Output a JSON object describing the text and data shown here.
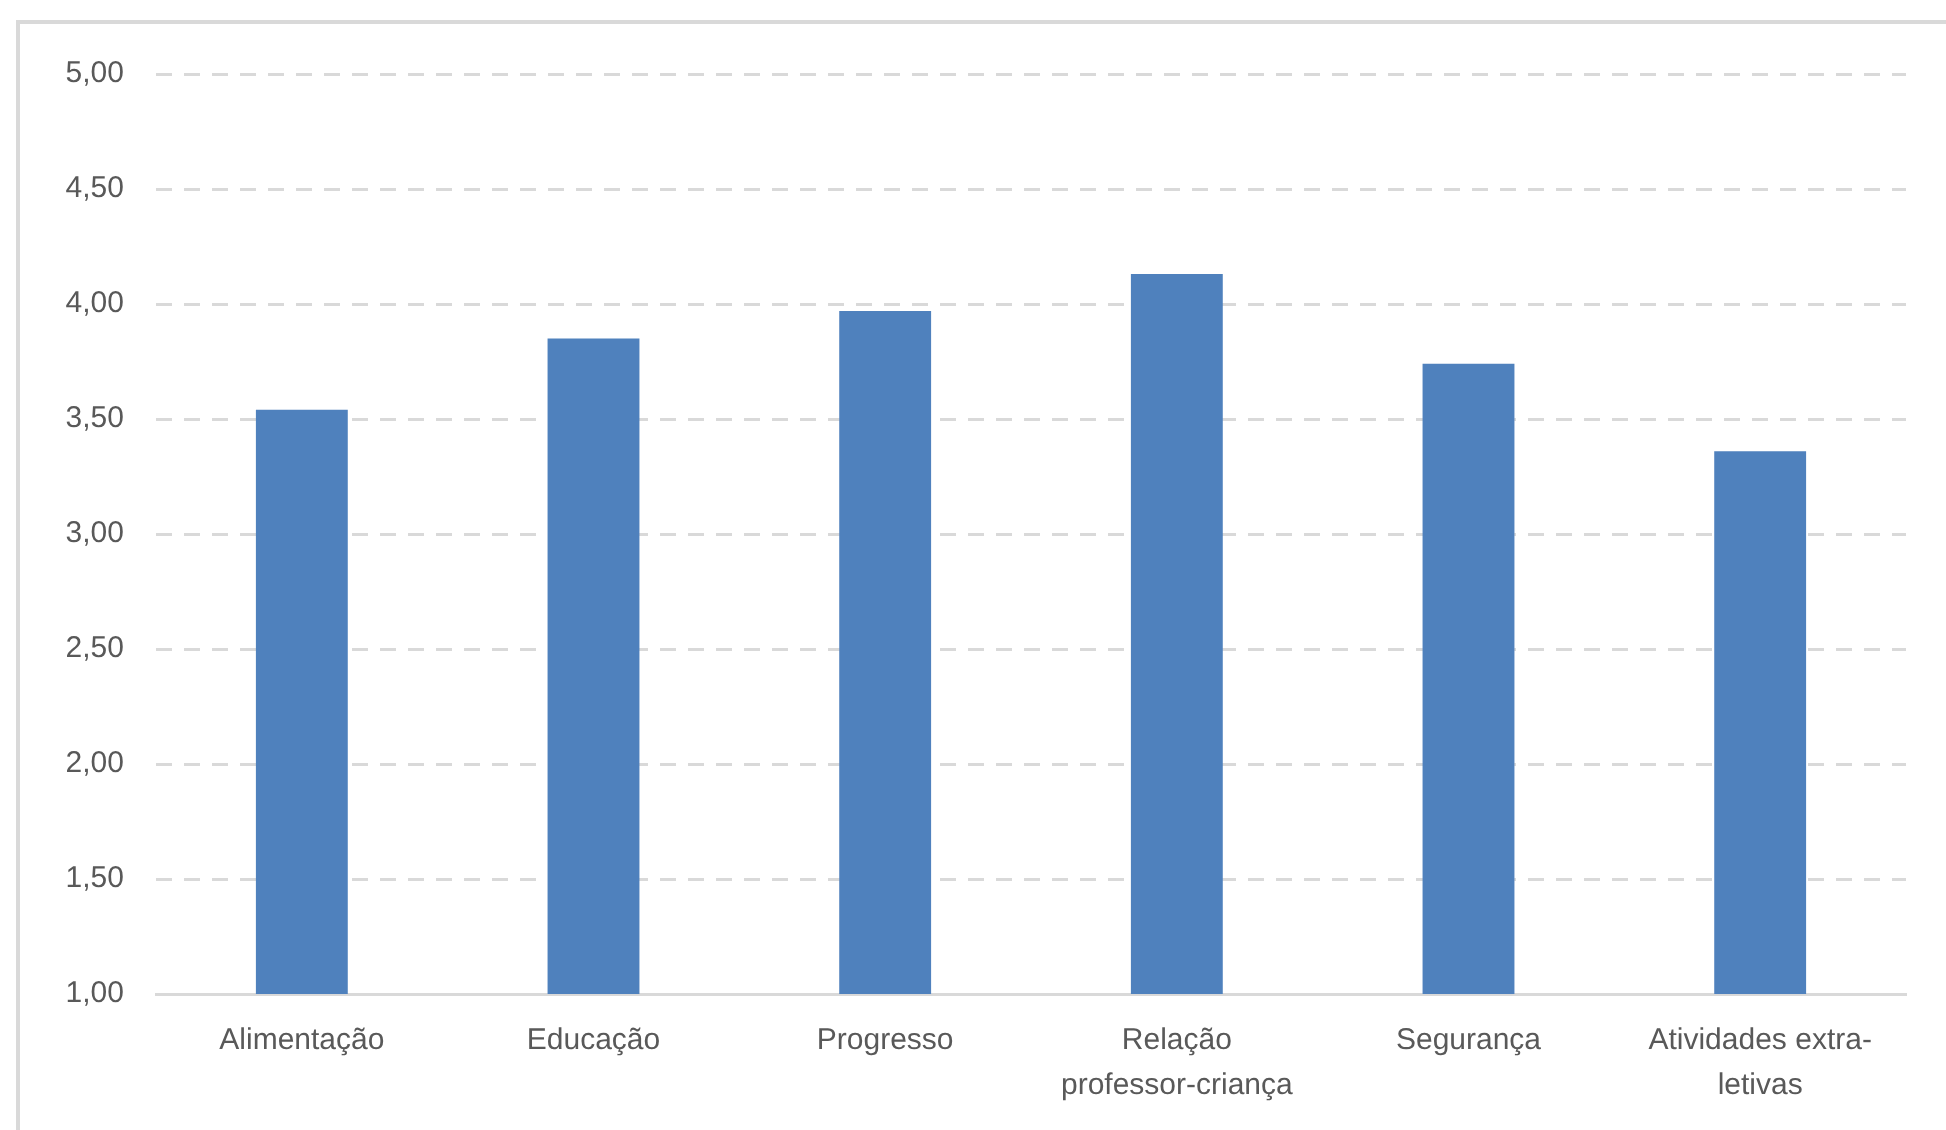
{
  "chart_data": {
    "type": "bar",
    "categories": [
      "Alimentação",
      "Educação",
      "Progresso",
      "Relação professor-criança",
      "Segurança",
      "Atividades extra-letivas"
    ],
    "values": [
      3.54,
      3.85,
      3.97,
      4.13,
      3.74,
      3.36
    ],
    "color": "#4f81bd",
    "ylim": [
      1,
      5
    ],
    "yticks": [
      {
        "value": 1,
        "label": "1,00"
      },
      {
        "value": 1.5,
        "label": "1,50"
      },
      {
        "value": 2,
        "label": "2,00"
      },
      {
        "value": 2.5,
        "label": "2,50"
      },
      {
        "value": 3,
        "label": "3,00"
      },
      {
        "value": 3.5,
        "label": "3,50"
      },
      {
        "value": 4,
        "label": "4,00"
      },
      {
        "value": 4.5,
        "label": "4,50"
      },
      {
        "value": 5,
        "label": "5,00"
      }
    ],
    "grid": "y"
  }
}
